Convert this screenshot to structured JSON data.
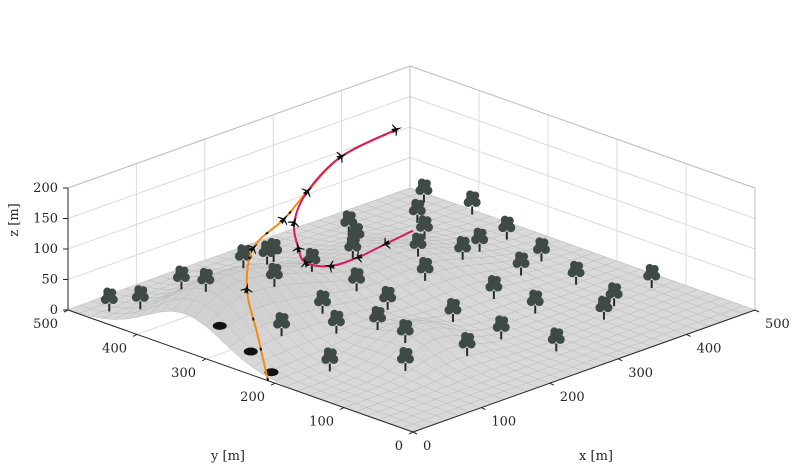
{
  "chart_data": {
    "type": "surface3d",
    "xlabel": "x [m]",
    "ylabel": "y [m]",
    "zlabel": "z [m]",
    "xlim": [
      0,
      500
    ],
    "ylim": [
      0,
      500
    ],
    "zlim": [
      0,
      200
    ],
    "xticks": [
      "0",
      "100",
      "200",
      "300",
      "400",
      "500"
    ],
    "yticks": [
      "0",
      "100",
      "200",
      "300",
      "400",
      "500"
    ],
    "zticks": [
      "0",
      "50",
      "100",
      "150",
      "200"
    ],
    "grid": true,
    "colors": {
      "surface": "#d9d9d9",
      "planned_path": "#d81b60",
      "flown_path": "#f28c0f",
      "trees": "#3f4a44",
      "aircraft": "#111111"
    },
    "terrain_hills": [
      {
        "x": 40,
        "y": 330,
        "height": 75,
        "spread": 55
      },
      {
        "x": 140,
        "y": 340,
        "height": 65,
        "spread": 60
      },
      {
        "x": 300,
        "y": 320,
        "height": 45,
        "spread": 70
      },
      {
        "x": 170,
        "y": 160,
        "height": 40,
        "spread": 40
      }
    ],
    "planned_path": [
      {
        "x": 0,
        "y": 0,
        "z": 330
      },
      {
        "x": 15,
        "y": 55,
        "z": 280
      },
      {
        "x": 30,
        "y": 110,
        "z": 230
      },
      {
        "x": 55,
        "y": 175,
        "z": 180
      },
      {
        "x": 95,
        "y": 250,
        "z": 140
      },
      {
        "x": 155,
        "y": 320,
        "z": 112
      },
      {
        "x": 225,
        "y": 395,
        "z": 96
      },
      {
        "x": 300,
        "y": 450,
        "z": 95
      },
      {
        "x": 380,
        "y": 480,
        "z": 108
      },
      {
        "x": 450,
        "y": 470,
        "z": 128
      }
    ],
    "flown_path": [
      {
        "x": 0,
        "y": 210,
        "z": 0
      },
      {
        "x": 30,
        "y": 255,
        "z": 45
      },
      {
        "x": 80,
        "y": 320,
        "z": 75
      },
      {
        "x": 150,
        "y": 380,
        "z": 90
      },
      {
        "x": 225,
        "y": 410,
        "z": 95
      },
      {
        "x": 300,
        "y": 450,
        "z": 95
      },
      {
        "x": 380,
        "y": 480,
        "z": 108
      },
      {
        "x": 450,
        "y": 470,
        "z": 128
      }
    ],
    "trees": [
      {
        "x": 20,
        "y": 460
      },
      {
        "x": 25,
        "y": 420
      },
      {
        "x": 30,
        "y": 330
      },
      {
        "x": 60,
        "y": 250
      },
      {
        "x": 75,
        "y": 410
      },
      {
        "x": 95,
        "y": 340
      },
      {
        "x": 100,
        "y": 300
      },
      {
        "x": 120,
        "y": 230
      },
      {
        "x": 130,
        "y": 260
      },
      {
        "x": 140,
        "y": 150
      },
      {
        "x": 150,
        "y": 200
      },
      {
        "x": 170,
        "y": 380
      },
      {
        "x": 175,
        "y": 320
      },
      {
        "x": 180,
        "y": 100
      },
      {
        "x": 200,
        "y": 280
      },
      {
        "x": 205,
        "y": 240
      },
      {
        "x": 230,
        "y": 430
      },
      {
        "x": 240,
        "y": 180
      },
      {
        "x": 250,
        "y": 120
      },
      {
        "x": 255,
        "y": 340
      },
      {
        "x": 270,
        "y": 60
      },
      {
        "x": 280,
        "y": 260
      },
      {
        "x": 300,
        "y": 380
      },
      {
        "x": 310,
        "y": 300
      },
      {
        "x": 320,
        "y": 200
      },
      {
        "x": 330,
        "y": 150
      },
      {
        "x": 350,
        "y": 440
      },
      {
        "x": 355,
        "y": 280
      },
      {
        "x": 370,
        "y": 90
      },
      {
        "x": 380,
        "y": 360
      },
      {
        "x": 390,
        "y": 230
      },
      {
        "x": 400,
        "y": 300
      },
      {
        "x": 420,
        "y": 180
      },
      {
        "x": 430,
        "y": 420
      },
      {
        "x": 440,
        "y": 250
      },
      {
        "x": 460,
        "y": 320
      },
      {
        "x": 470,
        "y": 120
      },
      {
        "x": 480,
        "y": 460
      },
      {
        "x": 490,
        "y": 400
      },
      {
        "x": 405,
        "y": 110
      },
      {
        "x": 110,
        "y": 120
      },
      {
        "x": 60,
        "y": 180
      }
    ],
    "aircraft_markers_planned": [
      1,
      2,
      3,
      4,
      5,
      6,
      7,
      8,
      9
    ],
    "aircraft_markers_flown": [
      2,
      3,
      4
    ],
    "ground_objects": [
      {
        "x": 10,
        "y": 290
      },
      {
        "x": 15,
        "y": 250
      },
      {
        "x": 10,
        "y": 215
      }
    ]
  }
}
